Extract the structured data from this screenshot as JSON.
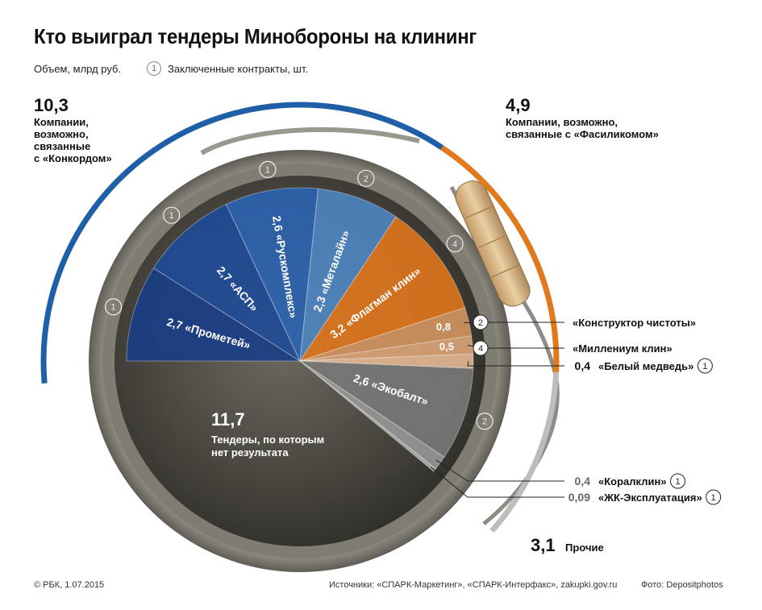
{
  "title": "Кто выиграл тендеры Минобороны на клининг",
  "legend": {
    "volume_label": "Объем, млрд руб.",
    "contracts_sample": "1",
    "contracts_label": "Заключенные контракты, шт."
  },
  "groups": {
    "konkord": {
      "value": "10,3",
      "label": "Компании,\nвозможно,\nсвязанные\nс «Конкордом»",
      "color": "#1f5fa8"
    },
    "fasilikom": {
      "value": "4,9",
      "label": "Компании, возможно,\nсвязанные с «Фасиликомом»",
      "color": "#e07a1c"
    },
    "other": {
      "value": "3,1",
      "label": "Прочие",
      "color": "#bdbdbd"
    }
  },
  "footer": {
    "copyright": "© РБК, 1.07.2015",
    "sources": "Источники: «СПАРК-Маркетинг», «СПАРК-Интерфакс», zakupki.gov.ru",
    "photo": "Фото: Depositphotos"
  },
  "chart_data": {
    "type": "pie",
    "title": "Кто выиграл тендеры Минобороны на клининг",
    "units": "млрд руб.",
    "slices": [
      {
        "name": "Прометей",
        "value": 2.7,
        "value_label": "2,7",
        "contracts": 1,
        "group": "konkord",
        "color": "#173c88"
      },
      {
        "name": "АСП",
        "value": 2.7,
        "value_label": "2,7",
        "contracts": 1,
        "group": "konkord",
        "color": "#1c4a9a"
      },
      {
        "name": "Рускомплекс",
        "value": 2.6,
        "value_label": "2,6",
        "contracts": 1,
        "group": "konkord",
        "color": "#2a63b4"
      },
      {
        "name": "Металайн",
        "value": 2.3,
        "value_label": "2,3",
        "contracts": 2,
        "group": "konkord",
        "color": "#4c86c4"
      },
      {
        "name": "Флагман клин",
        "value": 3.2,
        "value_label": "3,2",
        "contracts": 4,
        "group": "fasilikom",
        "color": "#e2761b"
      },
      {
        "name": "Конструктор чистоты",
        "value": 0.8,
        "value_label": "0,8",
        "contracts": 2,
        "group": "fasilikom",
        "color": "#d69660"
      },
      {
        "name": "Миллениум клин",
        "value": 0.5,
        "value_label": "0,5",
        "contracts": 4,
        "group": "fasilikom",
        "color": "#dfa679"
      },
      {
        "name": "Белый медведь",
        "value": 0.4,
        "value_label": "0,4",
        "contracts": 1,
        "group": "fasilikom",
        "color": "#e8bb95"
      },
      {
        "name": "Экобалт",
        "value": 2.6,
        "value_label": "2,6",
        "contracts": 2,
        "group": "other",
        "color": "#7a7a7a"
      },
      {
        "name": "Коралклин",
        "value": 0.4,
        "value_label": "0,4",
        "contracts": 1,
        "group": "other",
        "color": "#9a9a9a"
      },
      {
        "name": "ЖК-Эксплуатация",
        "value": 0.09,
        "value_label": "0,09",
        "contracts": 1,
        "group": "other",
        "color": "#b0b0b0"
      },
      {
        "name": "Тендеры, по которым нет результата",
        "value": 11.7,
        "value_label": "11,7",
        "contracts": null,
        "group": "none",
        "color": "#3b3833"
      }
    ],
    "group_totals": [
      {
        "group": "konkord",
        "value": 10.3
      },
      {
        "group": "fasilikom",
        "value": 4.9
      },
      {
        "group": "other",
        "value": 3.1
      }
    ],
    "no_result_label": "Тендеры, по которым\nнет результата"
  }
}
